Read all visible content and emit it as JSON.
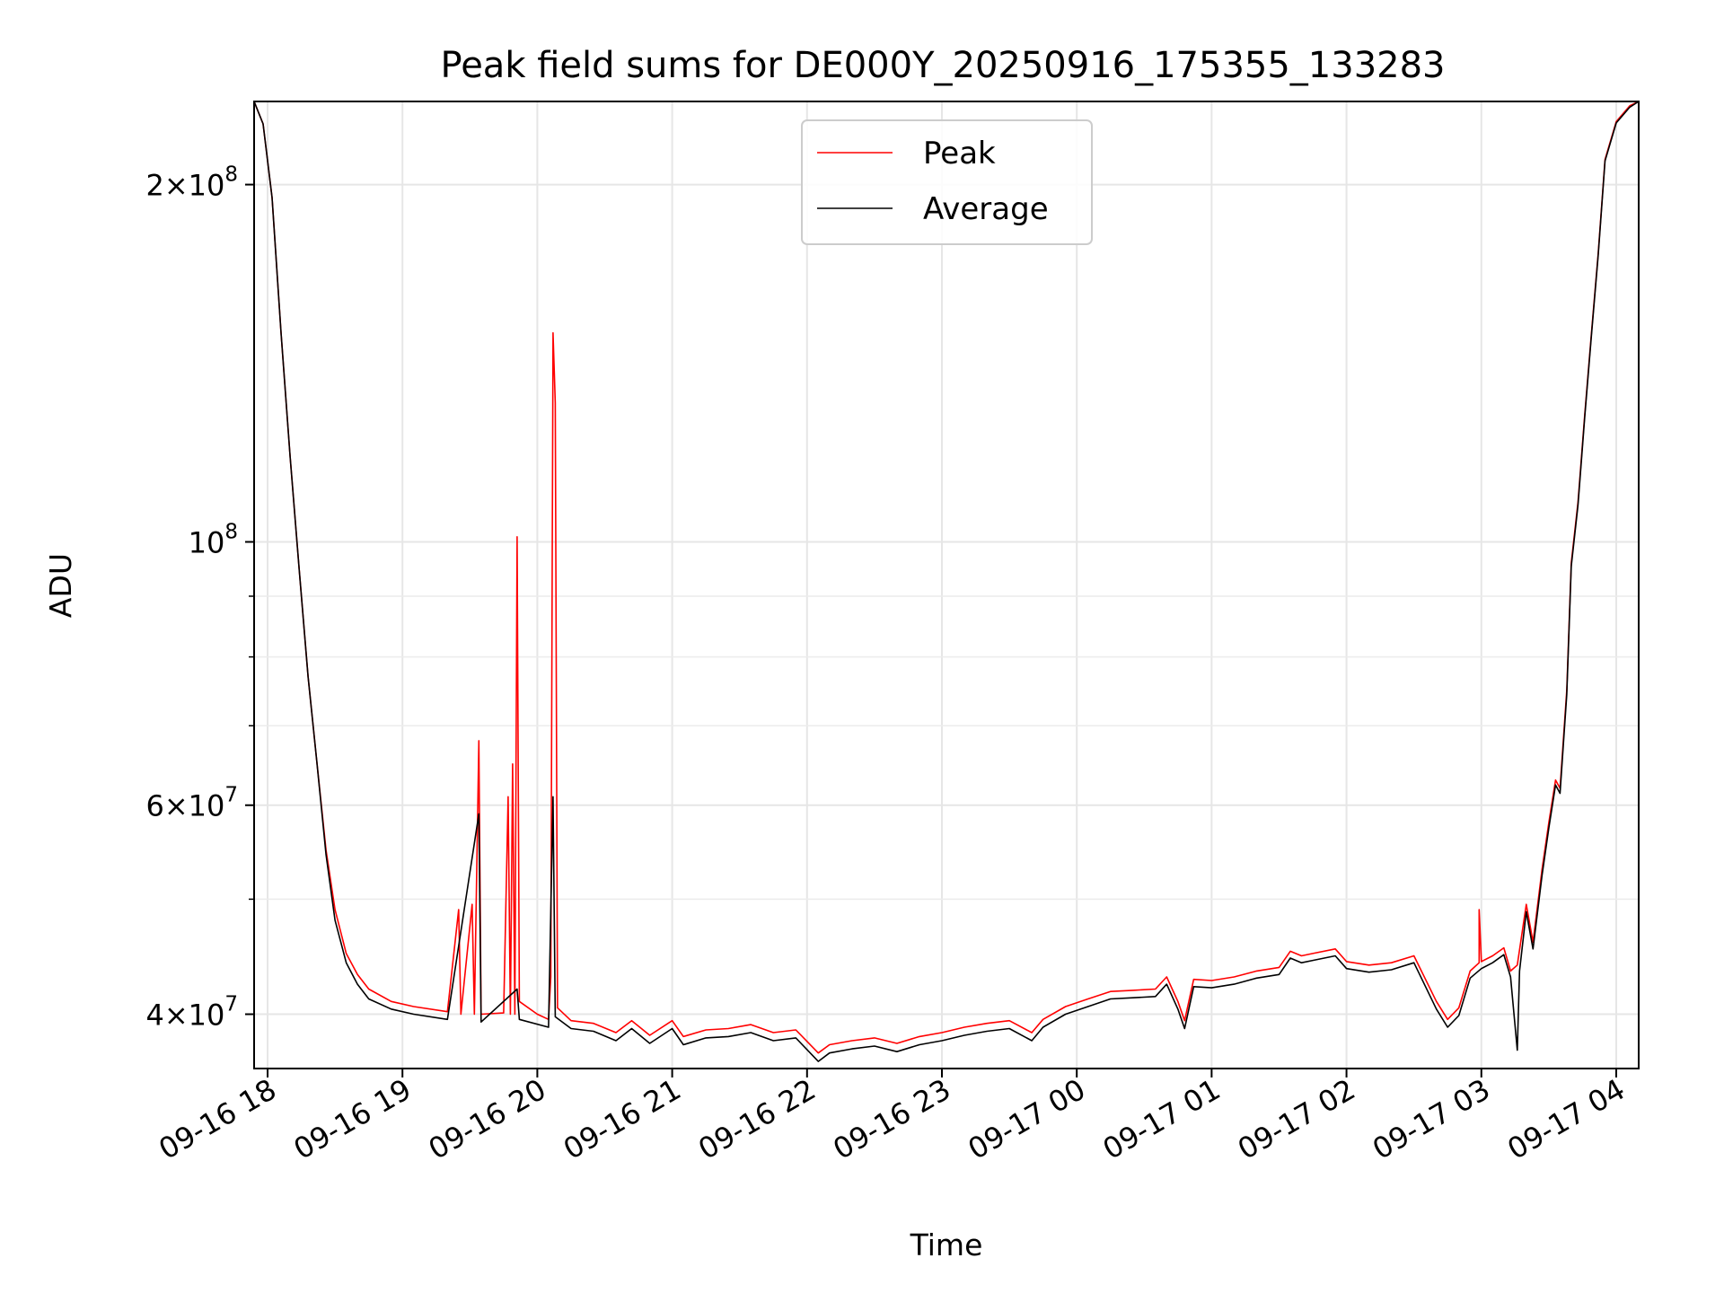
{
  "chart_data": {
    "type": "line",
    "title": "Peak field sums for DE000Y_20250916_175355_133283",
    "xlabel": "Time",
    "ylabel": "ADU",
    "yscale": "log",
    "ylim": [
      36000000,
      235000000
    ],
    "xlim": [
      "2025-09-16 17:54",
      "2025-09-17 04:10"
    ],
    "grid": true,
    "legend_position": "top-center",
    "x_ticks": [
      {
        "t": "2025-09-16 18:00",
        "label": "09-16 18"
      },
      {
        "t": "2025-09-16 19:00",
        "label": "09-16 19"
      },
      {
        "t": "2025-09-16 20:00",
        "label": "09-16 20"
      },
      {
        "t": "2025-09-16 21:00",
        "label": "09-16 21"
      },
      {
        "t": "2025-09-16 22:00",
        "label": "09-16 22"
      },
      {
        "t": "2025-09-16 23:00",
        "label": "09-16 23"
      },
      {
        "t": "2025-09-17 00:00",
        "label": "09-17 00"
      },
      {
        "t": "2025-09-17 01:00",
        "label": "09-17 01"
      },
      {
        "t": "2025-09-17 02:00",
        "label": "09-17 02"
      },
      {
        "t": "2025-09-17 03:00",
        "label": "09-17 03"
      },
      {
        "t": "2025-09-17 04:00",
        "label": "09-17 04"
      }
    ],
    "y_ticks_major": [
      {
        "value": 40000000,
        "mantissa": "4",
        "exp": "7",
        "prefix": true
      },
      {
        "value": 60000000,
        "mantissa": "6",
        "exp": "7",
        "prefix": true
      },
      {
        "value": 100000000,
        "mantissa": "",
        "exp": "8",
        "prefix": false
      },
      {
        "value": 200000000,
        "mantissa": "2",
        "exp": "8",
        "prefix": true
      }
    ],
    "y_ticks_minor": [
      50000000,
      70000000,
      80000000,
      90000000
    ],
    "series": [
      {
        "name": "Peak",
        "color": "#ff0000",
        "points": [
          [
            "2025-09-16 17:54",
            235000000
          ],
          [
            "2025-09-16 17:58",
            225000000
          ],
          [
            "2025-09-16 18:02",
            195000000
          ],
          [
            "2025-09-16 18:06",
            150000000
          ],
          [
            "2025-09-16 18:10",
            118000000
          ],
          [
            "2025-09-16 18:14",
            95000000
          ],
          [
            "2025-09-16 18:18",
            77000000
          ],
          [
            "2025-09-16 18:22",
            65000000
          ],
          [
            "2025-09-16 18:26",
            55000000
          ],
          [
            "2025-09-16 18:30",
            49000000
          ],
          [
            "2025-09-16 18:35",
            45000000
          ],
          [
            "2025-09-16 18:40",
            43200000
          ],
          [
            "2025-09-16 18:45",
            42000000
          ],
          [
            "2025-09-16 18:55",
            41000000
          ],
          [
            "2025-09-16 19:05",
            40600000
          ],
          [
            "2025-09-16 19:20",
            40200000
          ],
          [
            "2025-09-16 19:25",
            49000000
          ],
          [
            "2025-09-16 19:26",
            40000000
          ],
          [
            "2025-09-16 19:31",
            49500000
          ],
          [
            "2025-09-16 19:32",
            40000000
          ],
          [
            "2025-09-16 19:34",
            68000000
          ],
          [
            "2025-09-16 19:35",
            40000000
          ],
          [
            "2025-09-16 19:45",
            40100000
          ],
          [
            "2025-09-16 19:47",
            61000000
          ],
          [
            "2025-09-16 19:48",
            40000000
          ],
          [
            "2025-09-16 19:49",
            65000000
          ],
          [
            "2025-09-16 19:50",
            40000000
          ],
          [
            "2025-09-16 19:51",
            101000000
          ],
          [
            "2025-09-16 19:52",
            41000000
          ],
          [
            "2025-09-16 20:00",
            40000000
          ],
          [
            "2025-09-16 20:05",
            39600000
          ],
          [
            "2025-09-16 20:06",
            43000000
          ],
          [
            "2025-09-16 20:07",
            150000000
          ],
          [
            "2025-09-16 20:08",
            131000000
          ],
          [
            "2025-09-16 20:09",
            40500000
          ],
          [
            "2025-09-16 20:15",
            39500000
          ],
          [
            "2025-09-16 20:25",
            39300000
          ],
          [
            "2025-09-16 20:35",
            38600000
          ],
          [
            "2025-09-16 20:42",
            39500000
          ],
          [
            "2025-09-16 20:50",
            38400000
          ],
          [
            "2025-09-16 21:00",
            39500000
          ],
          [
            "2025-09-16 21:05",
            38300000
          ],
          [
            "2025-09-16 21:15",
            38800000
          ],
          [
            "2025-09-16 21:25",
            38900000
          ],
          [
            "2025-09-16 21:35",
            39200000
          ],
          [
            "2025-09-16 21:45",
            38600000
          ],
          [
            "2025-09-16 21:55",
            38800000
          ],
          [
            "2025-09-16 22:05",
            37100000
          ],
          [
            "2025-09-16 22:10",
            37700000
          ],
          [
            "2025-09-16 22:20",
            38000000
          ],
          [
            "2025-09-16 22:30",
            38200000
          ],
          [
            "2025-09-16 22:40",
            37800000
          ],
          [
            "2025-09-16 22:50",
            38300000
          ],
          [
            "2025-09-16 23:00",
            38600000
          ],
          [
            "2025-09-16 23:10",
            39000000
          ],
          [
            "2025-09-16 23:20",
            39300000
          ],
          [
            "2025-09-16 23:30",
            39500000
          ],
          [
            "2025-09-16 23:40",
            38600000
          ],
          [
            "2025-09-16 23:45",
            39600000
          ],
          [
            "2025-09-16 23:55",
            40600000
          ],
          [
            "2025-09-17 00:05",
            41200000
          ],
          [
            "2025-09-17 00:15",
            41800000
          ],
          [
            "2025-09-17 00:25",
            41900000
          ],
          [
            "2025-09-17 00:35",
            42000000
          ],
          [
            "2025-09-17 00:40",
            43000000
          ],
          [
            "2025-09-17 00:45",
            41000000
          ],
          [
            "2025-09-17 00:48",
            39500000
          ],
          [
            "2025-09-17 00:52",
            42800000
          ],
          [
            "2025-09-17 01:00",
            42700000
          ],
          [
            "2025-09-17 01:10",
            43000000
          ],
          [
            "2025-09-17 01:20",
            43500000
          ],
          [
            "2025-09-17 01:30",
            43800000
          ],
          [
            "2025-09-17 01:35",
            45200000
          ],
          [
            "2025-09-17 01:40",
            44800000
          ],
          [
            "2025-09-17 01:45",
            45000000
          ],
          [
            "2025-09-17 01:55",
            45400000
          ],
          [
            "2025-09-17 02:00",
            44300000
          ],
          [
            "2025-09-17 02:10",
            44000000
          ],
          [
            "2025-09-17 02:20",
            44200000
          ],
          [
            "2025-09-17 02:30",
            44800000
          ],
          [
            "2025-09-17 02:40",
            41000000
          ],
          [
            "2025-09-17 02:45",
            39600000
          ],
          [
            "2025-09-17 02:50",
            40500000
          ],
          [
            "2025-09-17 02:55",
            43500000
          ],
          [
            "2025-09-17 02:59",
            44200000
          ],
          [
            "2025-09-17 02:59",
            49000000
          ],
          [
            "2025-09-17 03:00",
            44300000
          ],
          [
            "2025-09-17 03:05",
            44800000
          ],
          [
            "2025-09-17 03:10",
            45500000
          ],
          [
            "2025-09-17 03:13",
            43500000
          ],
          [
            "2025-09-17 03:16",
            44000000
          ],
          [
            "2025-09-17 03:20",
            49500000
          ],
          [
            "2025-09-17 03:23",
            46000000
          ],
          [
            "2025-09-17 03:27",
            53000000
          ],
          [
            "2025-09-17 03:30",
            58000000
          ],
          [
            "2025-09-17 03:33",
            63000000
          ],
          [
            "2025-09-17 03:35",
            62000000
          ],
          [
            "2025-09-17 03:38",
            75000000
          ],
          [
            "2025-09-17 03:40",
            96000000
          ],
          [
            "2025-09-17 03:43",
            108000000
          ],
          [
            "2025-09-17 03:46",
            128000000
          ],
          [
            "2025-09-17 03:49",
            150000000
          ],
          [
            "2025-09-17 03:52",
            175000000
          ],
          [
            "2025-09-17 03:55",
            210000000
          ],
          [
            "2025-09-17 04:00",
            226000000
          ],
          [
            "2025-09-17 04:06",
            233000000
          ],
          [
            "2025-09-17 04:10",
            235000000
          ]
        ]
      },
      {
        "name": "Average",
        "color": "#000000",
        "points": [
          [
            "2025-09-16 17:54",
            235000000
          ],
          [
            "2025-09-16 17:58",
            225000000
          ],
          [
            "2025-09-16 18:02",
            195000000
          ],
          [
            "2025-09-16 18:06",
            150000000
          ],
          [
            "2025-09-16 18:10",
            118000000
          ],
          [
            "2025-09-16 18:14",
            95000000
          ],
          [
            "2025-09-16 18:18",
            77000000
          ],
          [
            "2025-09-16 18:22",
            65000000
          ],
          [
            "2025-09-16 18:26",
            54500000
          ],
          [
            "2025-09-16 18:30",
            48000000
          ],
          [
            "2025-09-16 18:35",
            44200000
          ],
          [
            "2025-09-16 18:40",
            42400000
          ],
          [
            "2025-09-16 18:45",
            41200000
          ],
          [
            "2025-09-16 18:55",
            40400000
          ],
          [
            "2025-09-16 19:05",
            40000000
          ],
          [
            "2025-09-16 19:20",
            39600000
          ],
          [
            "2025-09-16 19:34",
            59000000
          ],
          [
            "2025-09-16 19:35",
            39400000
          ],
          [
            "2025-09-16 19:51",
            42000000
          ],
          [
            "2025-09-16 19:52",
            39600000
          ],
          [
            "2025-09-16 20:05",
            39000000
          ],
          [
            "2025-09-16 20:07",
            61000000
          ],
          [
            "2025-09-16 20:08",
            39800000
          ],
          [
            "2025-09-16 20:15",
            38900000
          ],
          [
            "2025-09-16 20:25",
            38700000
          ],
          [
            "2025-09-16 20:35",
            38000000
          ],
          [
            "2025-09-16 20:42",
            38900000
          ],
          [
            "2025-09-16 20:50",
            37800000
          ],
          [
            "2025-09-16 21:00",
            38900000
          ],
          [
            "2025-09-16 21:05",
            37700000
          ],
          [
            "2025-09-16 21:15",
            38200000
          ],
          [
            "2025-09-16 21:25",
            38300000
          ],
          [
            "2025-09-16 21:35",
            38600000
          ],
          [
            "2025-09-16 21:45",
            38000000
          ],
          [
            "2025-09-16 21:55",
            38200000
          ],
          [
            "2025-09-16 22:05",
            36500000
          ],
          [
            "2025-09-16 22:10",
            37100000
          ],
          [
            "2025-09-16 22:20",
            37400000
          ],
          [
            "2025-09-16 22:30",
            37600000
          ],
          [
            "2025-09-16 22:40",
            37200000
          ],
          [
            "2025-09-16 22:50",
            37700000
          ],
          [
            "2025-09-16 23:00",
            38000000
          ],
          [
            "2025-09-16 23:10",
            38400000
          ],
          [
            "2025-09-16 23:20",
            38700000
          ],
          [
            "2025-09-16 23:30",
            38900000
          ],
          [
            "2025-09-16 23:40",
            38000000
          ],
          [
            "2025-09-16 23:45",
            39000000
          ],
          [
            "2025-09-16 23:55",
            40000000
          ],
          [
            "2025-09-17 00:05",
            40600000
          ],
          [
            "2025-09-17 00:15",
            41200000
          ],
          [
            "2025-09-17 00:25",
            41300000
          ],
          [
            "2025-09-17 00:35",
            41400000
          ],
          [
            "2025-09-17 00:40",
            42400000
          ],
          [
            "2025-09-17 00:45",
            40400000
          ],
          [
            "2025-09-17 00:48",
            38900000
          ],
          [
            "2025-09-17 00:52",
            42200000
          ],
          [
            "2025-09-17 01:00",
            42100000
          ],
          [
            "2025-09-17 01:10",
            42400000
          ],
          [
            "2025-09-17 01:20",
            42900000
          ],
          [
            "2025-09-17 01:30",
            43200000
          ],
          [
            "2025-09-17 01:35",
            44600000
          ],
          [
            "2025-09-17 01:40",
            44200000
          ],
          [
            "2025-09-17 01:45",
            44400000
          ],
          [
            "2025-09-17 01:55",
            44800000
          ],
          [
            "2025-09-17 02:00",
            43700000
          ],
          [
            "2025-09-17 02:10",
            43400000
          ],
          [
            "2025-09-17 02:20",
            43600000
          ],
          [
            "2025-09-17 02:30",
            44200000
          ],
          [
            "2025-09-17 02:40",
            40400000
          ],
          [
            "2025-09-17 02:45",
            39000000
          ],
          [
            "2025-09-17 02:50",
            39900000
          ],
          [
            "2025-09-17 02:55",
            42900000
          ],
          [
            "2025-09-17 03:00",
            43700000
          ],
          [
            "2025-09-17 03:05",
            44200000
          ],
          [
            "2025-09-17 03:10",
            44900000
          ],
          [
            "2025-09-17 03:13",
            43000000
          ],
          [
            "2025-09-17 03:16",
            37300000
          ],
          [
            "2025-09-17 03:17",
            43500000
          ],
          [
            "2025-09-17 03:20",
            48800000
          ],
          [
            "2025-09-17 03:23",
            45400000
          ],
          [
            "2025-09-17 03:27",
            52400000
          ],
          [
            "2025-09-17 03:30",
            57400000
          ],
          [
            "2025-09-17 03:33",
            62400000
          ],
          [
            "2025-09-17 03:35",
            61400000
          ],
          [
            "2025-09-17 03:38",
            74400000
          ],
          [
            "2025-09-17 03:40",
            95400000
          ],
          [
            "2025-09-17 03:43",
            107400000
          ],
          [
            "2025-09-17 03:46",
            127400000
          ],
          [
            "2025-09-17 03:49",
            149400000
          ],
          [
            "2025-09-17 03:52",
            174400000
          ],
          [
            "2025-09-17 03:55",
            209400000
          ],
          [
            "2025-09-17 04:00",
            225400000
          ],
          [
            "2025-09-17 04:06",
            232400000
          ],
          [
            "2025-09-17 04:10",
            235000000
          ]
        ]
      }
    ]
  }
}
